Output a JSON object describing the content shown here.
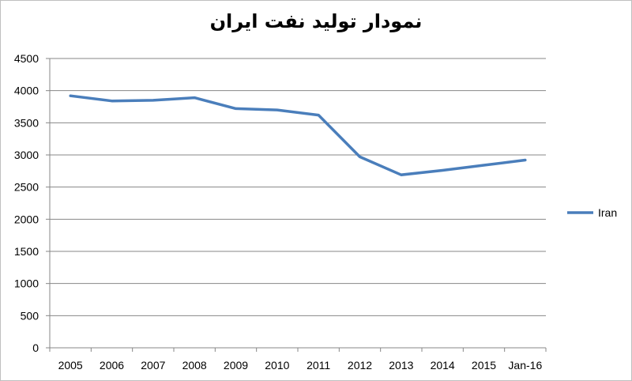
{
  "chart_data": {
    "type": "line",
    "title": "نمودار تولید نفت ایران",
    "categories": [
      "2005",
      "2006",
      "2007",
      "2008",
      "2009",
      "2010",
      "2011",
      "2012",
      "2013",
      "2014",
      "2015",
      "Jan-16"
    ],
    "series": [
      {
        "name": "Iran",
        "color": "#4a7ebb",
        "values": [
          3920,
          3840,
          3850,
          3890,
          3720,
          3700,
          3620,
          2970,
          2690,
          2760,
          2840,
          2920
        ]
      }
    ],
    "ylim": [
      0,
      4500
    ],
    "yticks": [
      0,
      500,
      1000,
      1500,
      2000,
      2500,
      3000,
      3500,
      4000,
      4500
    ],
    "grid": true,
    "legend": "right"
  }
}
